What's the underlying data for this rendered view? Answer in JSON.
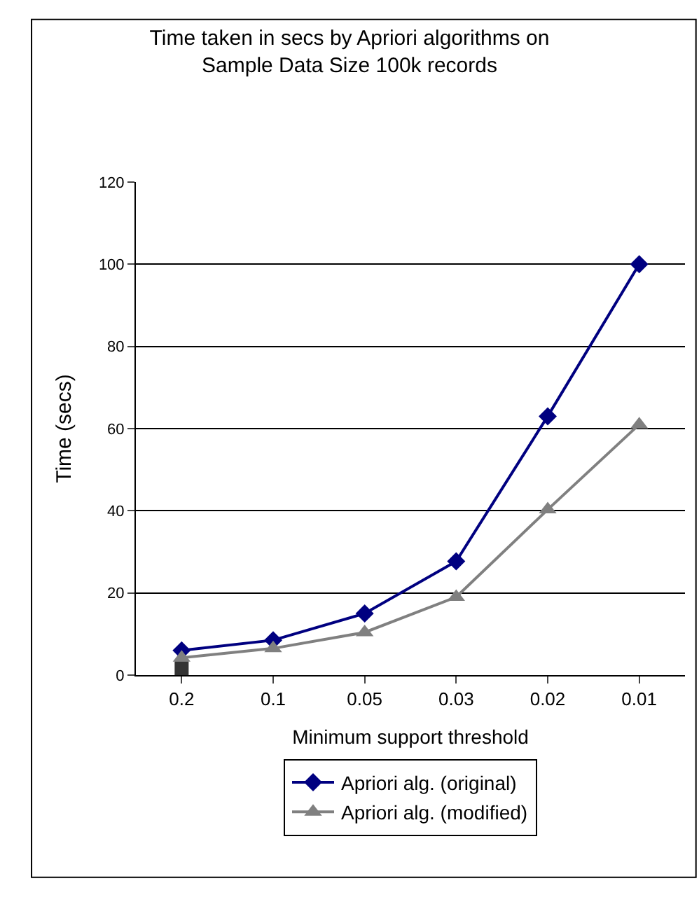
{
  "chart_data": {
    "type": "line",
    "title": "Time taken in secs by Apriori algorithms on\nSample Data Size 100k records",
    "xlabel": "Minimum support threshold",
    "ylabel": "Time (secs)",
    "categories": [
      "0.2",
      "0.1",
      "0.05",
      "0.03",
      "0.02",
      "0.01"
    ],
    "series": [
      {
        "name": "Apriori alg. (original)",
        "color": "#000080",
        "marker": "diamond",
        "values": [
          6.0,
          8.5,
          15,
          27.7,
          63,
          100
        ]
      },
      {
        "name": "Apriori alg. (modified)",
        "color": "#808080",
        "marker": "triangle",
        "values": [
          4.2,
          6.5,
          10.4,
          19,
          40.3,
          61
        ]
      },
      {
        "type": "scatter",
        "color": "#333333",
        "marker": "square",
        "values": [
          1.6,
          null,
          null,
          null,
          null,
          null
        ]
      }
    ],
    "ylim": [
      0,
      120
    ],
    "yticks": [
      0,
      20,
      40,
      60,
      80,
      100,
      120
    ],
    "grid": "y",
    "legend": "bottom"
  }
}
